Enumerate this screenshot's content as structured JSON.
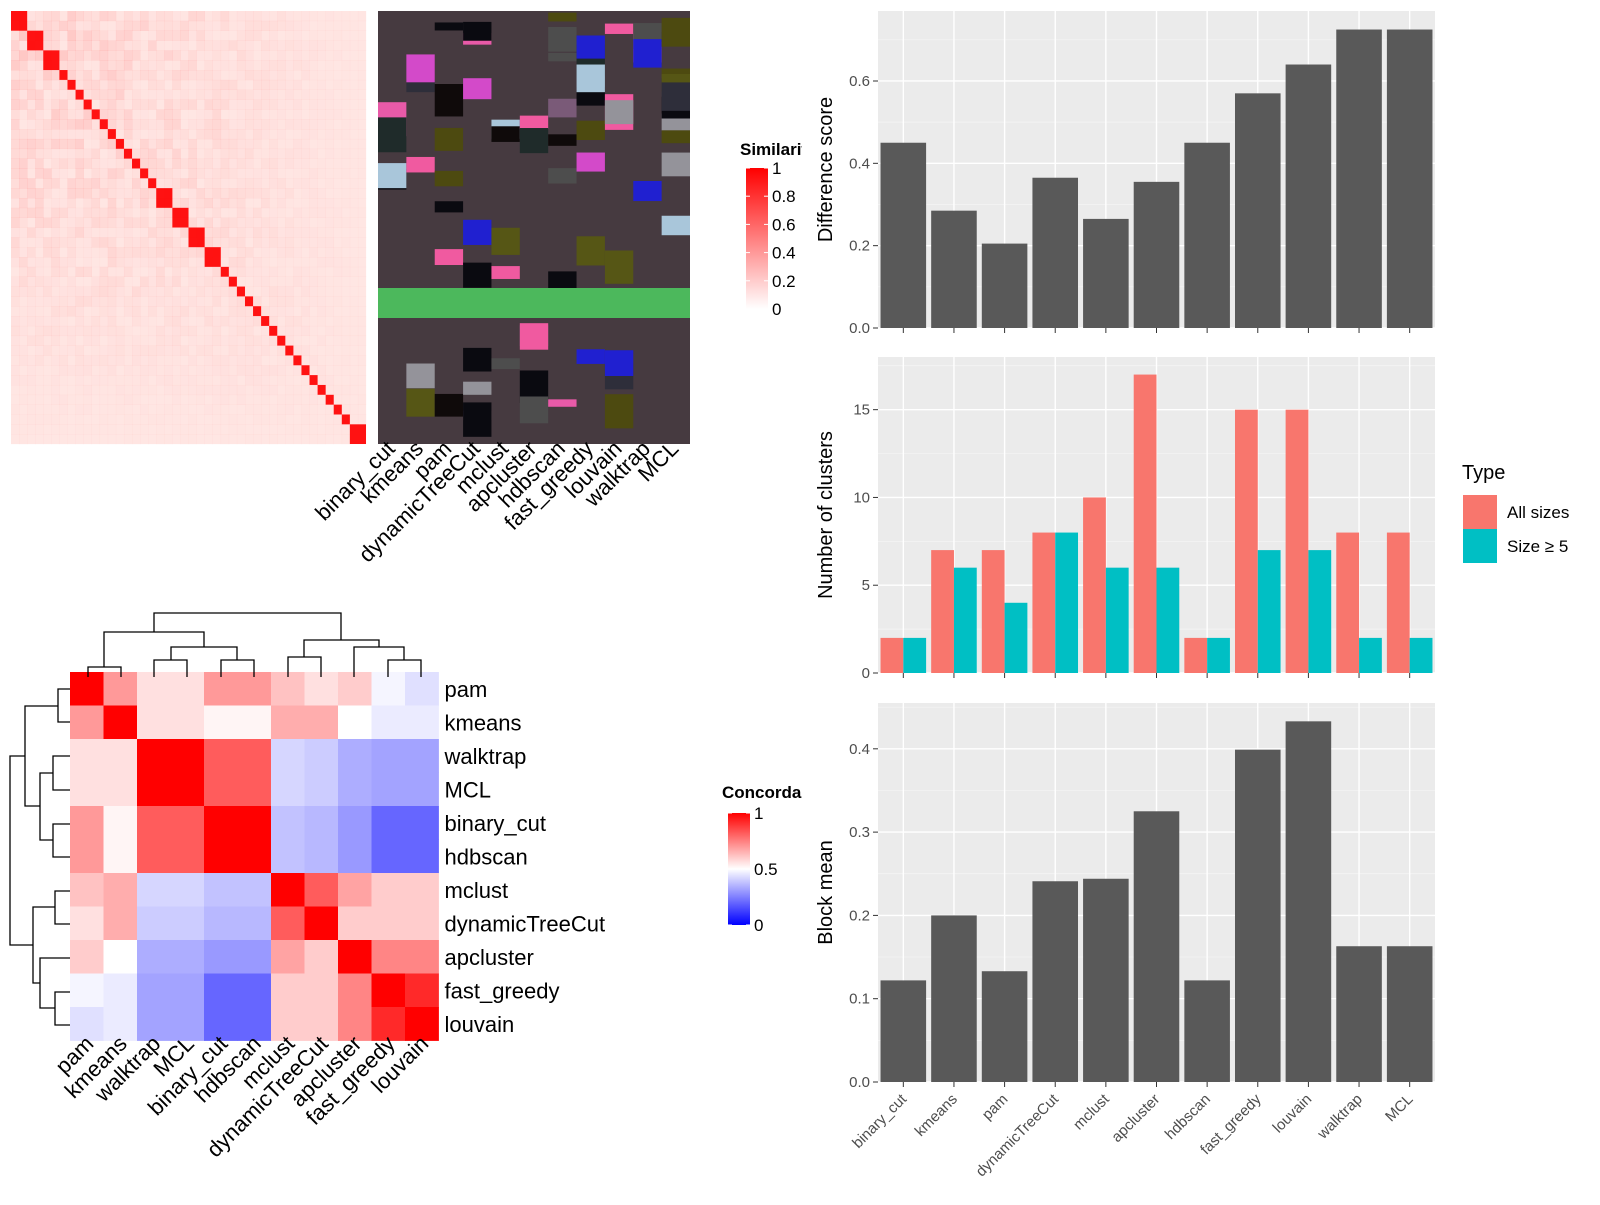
{
  "chart_data": [
    {
      "type": "heatmap",
      "panel": "similarity-matrix",
      "legend": {
        "title": "Similarity",
        "ticks": [
          "1",
          "0.8",
          "0.6",
          "0.4",
          "0.2",
          "0"
        ],
        "range": [
          0,
          1
        ]
      },
      "method_columns": [
        "binary_cut",
        "kmeans",
        "pam",
        "dynamicTreeCut",
        "mclust",
        "apcluster",
        "hdbscan",
        "fast_greedy",
        "louvain",
        "walktrap",
        "MCL"
      ]
    },
    {
      "type": "heatmap",
      "panel": "concordance",
      "legend": {
        "title": "Concordance",
        "ticks": [
          "1",
          "0.5",
          "0"
        ],
        "range": [
          0,
          1
        ]
      },
      "rows": [
        "pam",
        "kmeans",
        "walktrap",
        "MCL",
        "binary_cut",
        "hdbscan",
        "mclust",
        "dynamicTreeCut",
        "apcluster",
        "fast_greedy",
        "louvain"
      ],
      "cols": [
        "pam",
        "kmeans",
        "walktrap",
        "MCL",
        "binary_cut",
        "hdbscan",
        "mclust",
        "dynamicTreeCut",
        "apcluster",
        "fast_greedy",
        "louvain"
      ],
      "values": [
        [
          1.0,
          0.7,
          0.56,
          0.56,
          0.7,
          0.7,
          0.62,
          0.56,
          0.6,
          0.48,
          0.44
        ],
        [
          0.7,
          1.0,
          0.56,
          0.56,
          0.52,
          0.52,
          0.66,
          0.66,
          0.5,
          0.46,
          0.46
        ],
        [
          0.56,
          0.56,
          1.0,
          1.0,
          0.82,
          0.82,
          0.42,
          0.4,
          0.34,
          0.32,
          0.32
        ],
        [
          0.56,
          0.56,
          1.0,
          1.0,
          0.82,
          0.82,
          0.42,
          0.4,
          0.34,
          0.32,
          0.32
        ],
        [
          0.7,
          0.52,
          0.82,
          0.82,
          1.0,
          1.0,
          0.38,
          0.36,
          0.3,
          0.2,
          0.2
        ],
        [
          0.7,
          0.52,
          0.82,
          0.82,
          1.0,
          1.0,
          0.38,
          0.36,
          0.3,
          0.2,
          0.2
        ],
        [
          0.62,
          0.66,
          0.42,
          0.42,
          0.38,
          0.38,
          1.0,
          0.82,
          0.68,
          0.6,
          0.6
        ],
        [
          0.56,
          0.66,
          0.4,
          0.4,
          0.36,
          0.36,
          0.82,
          1.0,
          0.6,
          0.6,
          0.6
        ],
        [
          0.6,
          0.5,
          0.34,
          0.34,
          0.3,
          0.3,
          0.68,
          0.6,
          1.0,
          0.74,
          0.74
        ],
        [
          0.48,
          0.46,
          0.32,
          0.32,
          0.2,
          0.2,
          0.6,
          0.6,
          0.74,
          1.0,
          0.92
        ],
        [
          0.44,
          0.46,
          0.32,
          0.32,
          0.2,
          0.2,
          0.6,
          0.6,
          0.74,
          0.92,
          1.0
        ]
      ]
    },
    {
      "type": "bar",
      "panel": "difference-score",
      "categories": [
        "binary_cut",
        "kmeans",
        "pam",
        "dynamicTreeCut",
        "mclust",
        "apcluster",
        "hdbscan",
        "fast_greedy",
        "louvain",
        "walktrap",
        "MCL"
      ],
      "values": [
        0.45,
        0.285,
        0.205,
        0.365,
        0.265,
        0.355,
        0.45,
        0.57,
        0.64,
        0.725,
        0.725
      ],
      "ylabel": "Difference score",
      "ylim": [
        0,
        0.77
      ],
      "yticks": [
        "0.0",
        "0.2",
        "0.4",
        "0.6"
      ]
    },
    {
      "type": "bar",
      "panel": "number-of-clusters",
      "categories": [
        "binary_cut",
        "kmeans",
        "pam",
        "dynamicTreeCut",
        "mclust",
        "apcluster",
        "hdbscan",
        "fast_greedy",
        "louvain",
        "walktrap",
        "MCL"
      ],
      "series": [
        {
          "name": "All sizes",
          "values": [
            2,
            7,
            7,
            8,
            10,
            17,
            2,
            15,
            15,
            8,
            8
          ]
        },
        {
          "name": "Size ≥ 5",
          "values": [
            2,
            6,
            4,
            8,
            6,
            6,
            2,
            7,
            7,
            2,
            2
          ]
        }
      ],
      "ylabel": "Number of clusters",
      "ylim": [
        0,
        18
      ],
      "yticks": [
        "0",
        "5",
        "10",
        "15"
      ],
      "legend": {
        "title": "Type",
        "placement": "right"
      }
    },
    {
      "type": "bar",
      "panel": "block-mean",
      "categories": [
        "binary_cut",
        "kmeans",
        "pam",
        "dynamicTreeCut",
        "mclust",
        "apcluster",
        "hdbscan",
        "fast_greedy",
        "louvain",
        "walktrap",
        "MCL"
      ],
      "values": [
        0.122,
        0.2,
        0.133,
        0.241,
        0.244,
        0.325,
        0.122,
        0.399,
        0.433,
        0.163,
        0.163
      ],
      "ylabel": "Block mean",
      "ylim": [
        0,
        0.455
      ],
      "yticks": [
        "0.0",
        "0.1",
        "0.2",
        "0.3",
        "0.4"
      ]
    }
  ],
  "colors": {
    "bar_gray": "#595959",
    "panel_bg": "#ebebeb",
    "all_sizes": "#f8766d",
    "size5": "#00bfc4",
    "high": "#ff0000",
    "mid": "#ffffff",
    "low": "#0000ff",
    "cluster_bg": "#463a40",
    "cluster_band": "#4cb85c"
  }
}
